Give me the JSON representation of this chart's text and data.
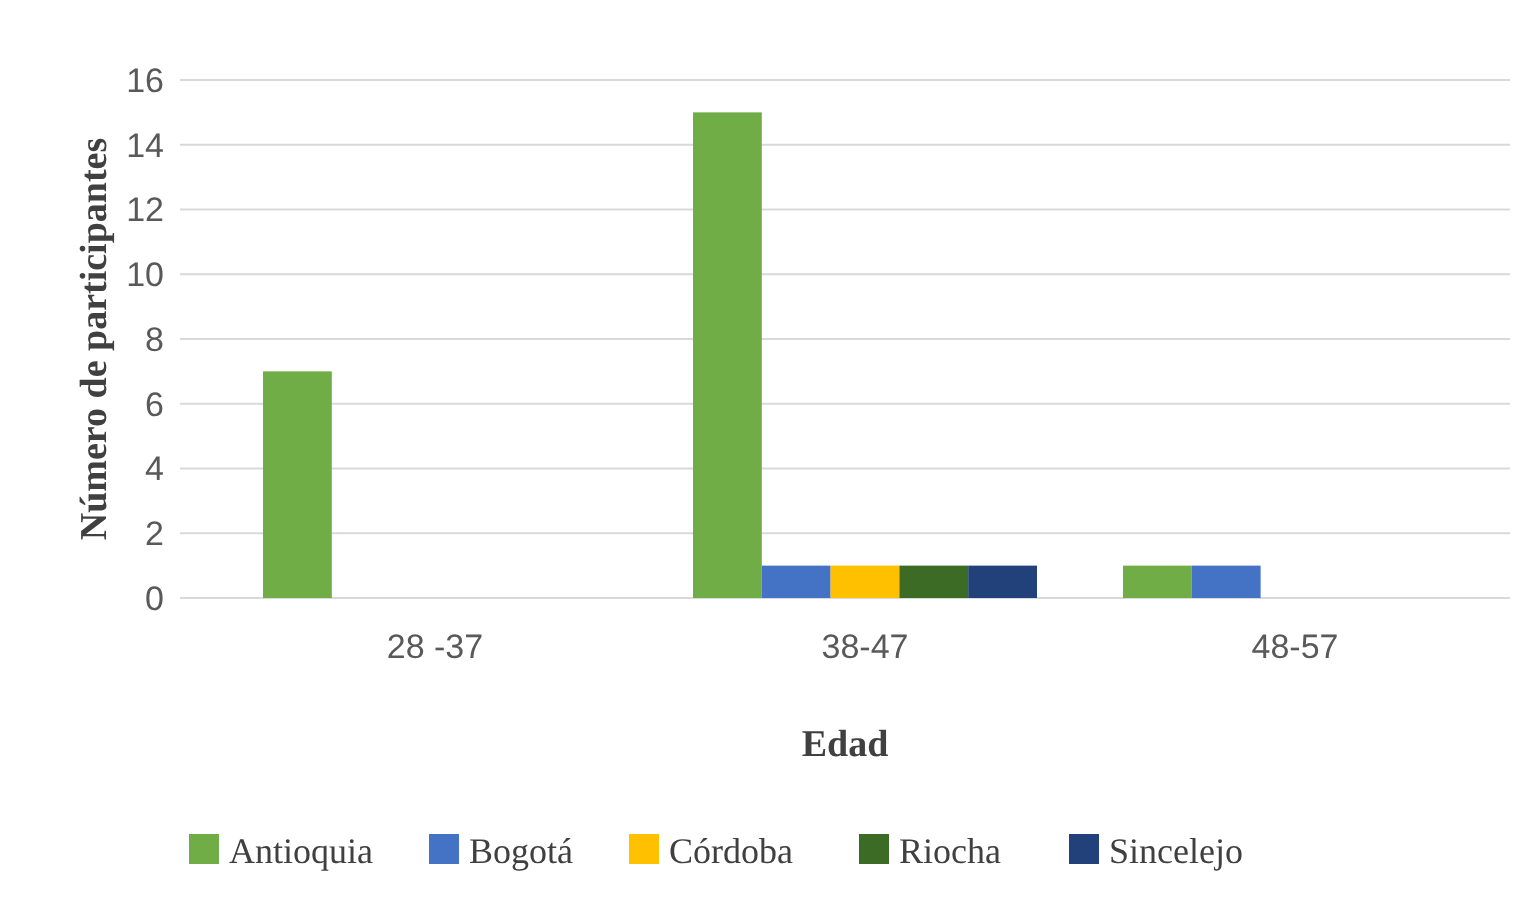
{
  "chart_data": {
    "type": "bar",
    "xlabel": "Edad",
    "ylabel": "Número de participantes",
    "categories": [
      "28 -37",
      "38-47",
      "48-57"
    ],
    "series": [
      {
        "name": "Antioquia",
        "color": "#70ad47",
        "values": [
          7,
          15,
          1
        ]
      },
      {
        "name": "Bogotá",
        "color": "#4472c4",
        "values": [
          0,
          1,
          1
        ]
      },
      {
        "name": "Córdoba",
        "color": "#ffc000",
        "values": [
          0,
          1,
          0
        ]
      },
      {
        "name": "Riocha",
        "color": "#3b6b25",
        "values": [
          0,
          1,
          0
        ]
      },
      {
        "name": "Sincelejo",
        "color": "#22407a",
        "values": [
          0,
          1,
          0
        ]
      }
    ],
    "ylim": [
      0,
      16
    ],
    "yticks": [
      0,
      2,
      4,
      6,
      8,
      10,
      12,
      14,
      16
    ],
    "grid": "y",
    "legend": "bottom"
  }
}
